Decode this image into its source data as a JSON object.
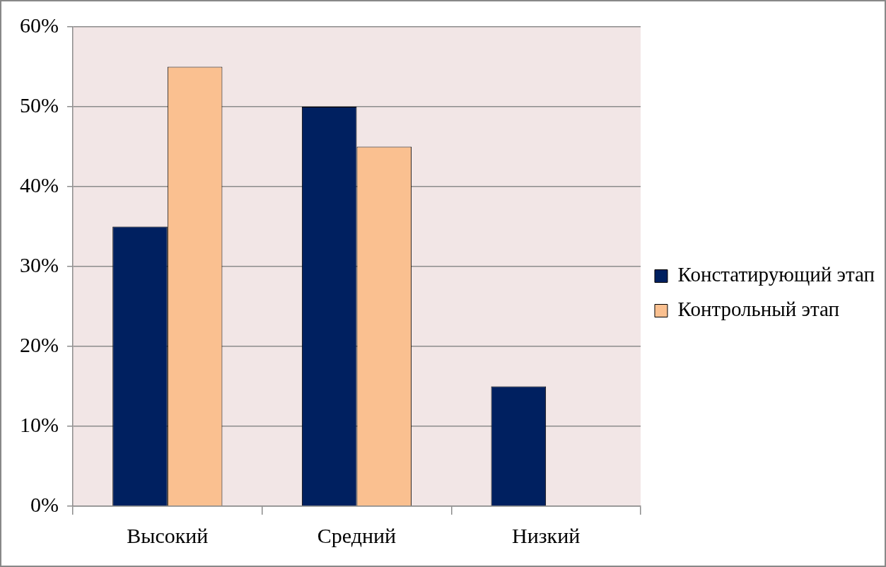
{
  "chart_data": {
    "type": "bar",
    "categories": [
      "Высокий",
      "Средний",
      "Низкий"
    ],
    "series": [
      {
        "name": "Констатирующий этап",
        "color": "#002060",
        "values": [
          35,
          50,
          15
        ]
      },
      {
        "name": "Контрольный этап",
        "color": "#fac090",
        "values": [
          55,
          45,
          0
        ]
      }
    ],
    "ylim": [
      0,
      60
    ],
    "yticks": [
      {
        "value": 0,
        "label": "0%"
      },
      {
        "value": 10,
        "label": "10%"
      },
      {
        "value": 20,
        "label": "20%"
      },
      {
        "value": 30,
        "label": "30%"
      },
      {
        "value": 40,
        "label": "40%"
      },
      {
        "value": 50,
        "label": "50%"
      },
      {
        "value": 60,
        "label": "60%"
      }
    ],
    "grid": "y",
    "legend": "right"
  }
}
